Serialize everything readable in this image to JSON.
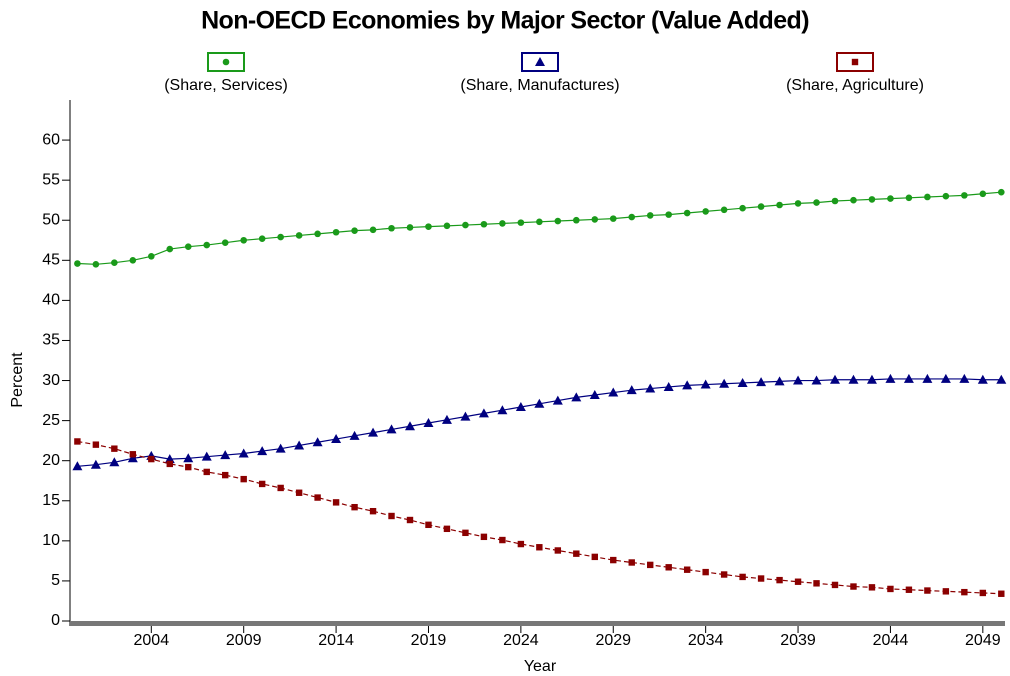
{
  "chart_data": {
    "type": "line",
    "title": "Non-OECD Economies by Major Sector (Value Added)",
    "x_label": "Year",
    "y_label": "Percent",
    "x": [
      2000,
      2001,
      2002,
      2003,
      2004,
      2005,
      2006,
      2007,
      2008,
      2009,
      2010,
      2011,
      2012,
      2013,
      2014,
      2015,
      2016,
      2017,
      2018,
      2019,
      2020,
      2021,
      2022,
      2023,
      2024,
      2025,
      2026,
      2027,
      2028,
      2029,
      2030,
      2031,
      2032,
      2033,
      2034,
      2035,
      2036,
      2037,
      2038,
      2039,
      2040,
      2041,
      2042,
      2043,
      2044,
      2045,
      2046,
      2047,
      2048,
      2049,
      2050
    ],
    "xlim": [
      1999.6,
      2050.2
    ],
    "xticks": [
      2004,
      2009,
      2014,
      2019,
      2024,
      2029,
      2034,
      2039,
      2044,
      2049
    ],
    "ylim": [
      0,
      65
    ],
    "yticks": [
      0,
      5,
      10,
      15,
      20,
      25,
      30,
      35,
      40,
      45,
      50,
      55,
      60
    ],
    "series": [
      {
        "name": "(Share, Services)",
        "color": "#1a9a1a",
        "marker": "circle",
        "dashed": false,
        "values": [
          44.6,
          44.5,
          44.7,
          45.0,
          45.5,
          46.4,
          46.7,
          46.9,
          47.2,
          47.5,
          47.7,
          47.9,
          48.1,
          48.3,
          48.5,
          48.7,
          48.8,
          49.0,
          49.1,
          49.2,
          49.3,
          49.4,
          49.5,
          49.6,
          49.7,
          49.8,
          49.9,
          50.0,
          50.1,
          50.2,
          50.4,
          50.6,
          50.7,
          50.9,
          51.1,
          51.3,
          51.5,
          51.7,
          51.9,
          52.1,
          52.2,
          52.4,
          52.5,
          52.6,
          52.7,
          52.8,
          52.9,
          53.0,
          53.1,
          53.3,
          53.5
        ]
      },
      {
        "name": "(Share, Manufactures)",
        "color": "#000080",
        "marker": "triangle",
        "dashed": false,
        "values": [
          19.3,
          19.5,
          19.8,
          20.3,
          20.6,
          20.2,
          20.3,
          20.5,
          20.7,
          20.9,
          21.2,
          21.5,
          21.9,
          22.3,
          22.7,
          23.1,
          23.5,
          23.9,
          24.3,
          24.7,
          25.1,
          25.5,
          25.9,
          26.3,
          26.7,
          27.1,
          27.5,
          27.9,
          28.2,
          28.5,
          28.8,
          29.0,
          29.2,
          29.4,
          29.5,
          29.6,
          29.7,
          29.8,
          29.9,
          30.0,
          30.0,
          30.1,
          30.1,
          30.1,
          30.2,
          30.2,
          30.2,
          30.2,
          30.2,
          30.1,
          30.1
        ]
      },
      {
        "name": "(Share, Agriculture)",
        "color": "#8b0000",
        "marker": "square",
        "dashed": true,
        "values": [
          22.4,
          22.0,
          21.5,
          20.8,
          20.2,
          19.6,
          19.2,
          18.6,
          18.2,
          17.7,
          17.1,
          16.6,
          16.0,
          15.4,
          14.8,
          14.2,
          13.7,
          13.1,
          12.6,
          12.0,
          11.5,
          11.0,
          10.5,
          10.1,
          9.6,
          9.2,
          8.8,
          8.4,
          8.0,
          7.6,
          7.3,
          7.0,
          6.7,
          6.4,
          6.1,
          5.8,
          5.5,
          5.3,
          5.1,
          4.9,
          4.7,
          4.5,
          4.3,
          4.2,
          4.0,
          3.9,
          3.8,
          3.7,
          3.6,
          3.5,
          3.4
        ]
      }
    ]
  }
}
